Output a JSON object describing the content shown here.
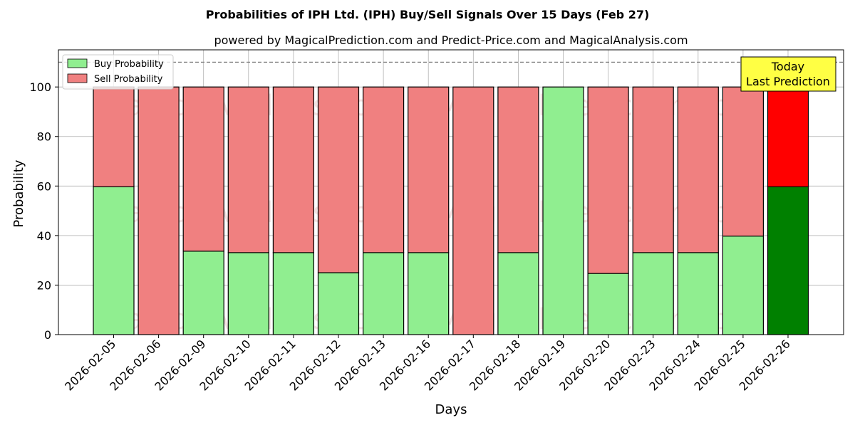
{
  "chart_data": {
    "type": "bar",
    "stacked": true,
    "title": "Probabilities of IPH Ltd. (IPH) Buy/Sell Signals Over 15 Days (Feb 27)",
    "subtitle": "powered by MagicalPrediction.com and Predict-Price.com and MagicalAnalysis.com",
    "xlabel": "Days",
    "ylabel": "Probability",
    "ylim": [
      0,
      115
    ],
    "yticks": [
      0,
      20,
      40,
      60,
      80,
      100
    ],
    "reference_line": 110,
    "grid": true,
    "legend_position": "top-left",
    "categories": [
      "2026-02-05",
      "2026-02-06",
      "2026-02-09",
      "2026-02-10",
      "2026-02-11",
      "2026-02-12",
      "2026-02-13",
      "2026-02-16",
      "2026-02-17",
      "2026-02-18",
      "2026-02-19",
      "2026-02-20",
      "2026-02-23",
      "2026-02-24",
      "2026-02-25",
      "2026-02-26"
    ],
    "series": [
      {
        "name": "Buy Probability",
        "color": "#90ee90",
        "highlight_color": "#008000",
        "values": [
          59.7,
          0,
          33.7,
          33.1,
          33.1,
          25.0,
          33.1,
          33.1,
          0,
          33.1,
          100,
          24.7,
          33.1,
          33.1,
          39.8,
          59.7
        ]
      },
      {
        "name": "Sell Probability",
        "color": "#f08080",
        "highlight_color": "#ff0000",
        "values": [
          40.3,
          100,
          66.3,
          66.9,
          66.9,
          75.0,
          66.9,
          66.9,
          100,
          66.9,
          0,
          75.3,
          66.9,
          66.9,
          60.2,
          40.3
        ]
      }
    ],
    "highlight_index": 15,
    "annotation": {
      "line1": "Today",
      "line2": "Last Prediction",
      "color": "#ffff44"
    },
    "watermarks": [
      "MagicalAnalysis.com",
      "MagicalPrediction.com"
    ]
  }
}
